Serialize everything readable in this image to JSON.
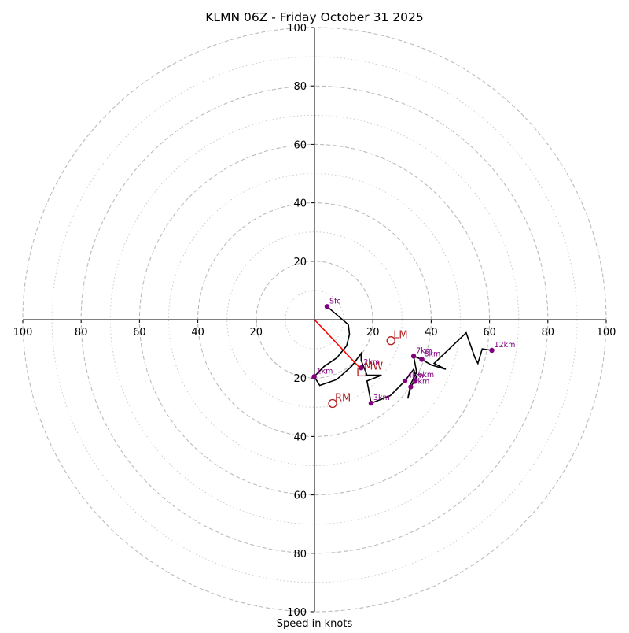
{
  "chart_data": {
    "type": "scatter",
    "title": "KLMN 06Z - Friday October 31 2025",
    "xlabel": "Speed in knots",
    "ylabel": "",
    "xlim": [
      -100,
      100
    ],
    "ylim": [
      -100,
      100
    ],
    "x_ticks": [
      {
        "value": -100,
        "label": "100"
      },
      {
        "value": -80,
        "label": "80"
      },
      {
        "value": -60,
        "label": "60"
      },
      {
        "value": -40,
        "label": "40"
      },
      {
        "value": -20,
        "label": "20"
      },
      {
        "value": 20,
        "label": "20"
      },
      {
        "value": 40,
        "label": "40"
      },
      {
        "value": 60,
        "label": "60"
      },
      {
        "value": 80,
        "label": "80"
      },
      {
        "value": 100,
        "label": "100"
      }
    ],
    "y_ticks": [
      {
        "value": 100,
        "label": "100"
      },
      {
        "value": 80,
        "label": "80"
      },
      {
        "value": 60,
        "label": "60"
      },
      {
        "value": 40,
        "label": "40"
      },
      {
        "value": 20,
        "label": "20"
      },
      {
        "value": -20,
        "label": "20"
      },
      {
        "value": -40,
        "label": "40"
      },
      {
        "value": -60,
        "label": "60"
      },
      {
        "value": -80,
        "label": "80"
      },
      {
        "value": -100,
        "label": "100"
      }
    ],
    "rings_major": [
      20,
      40,
      60,
      80,
      100
    ],
    "rings_minor": [
      10,
      30,
      50,
      70,
      90
    ],
    "colors": {
      "hodograph": "#000000",
      "height_marker": "#800080",
      "motion": "#b22222",
      "shear_vector": "#ff0000",
      "ring": "#bbbbbb",
      "axis": "#000000"
    },
    "hodograph": [
      [
        4.3,
        4.5
      ],
      [
        11.6,
        -1.7
      ],
      [
        12.0,
        -5.0
      ],
      [
        11.0,
        -9.0
      ],
      [
        7.6,
        -13.1
      ],
      [
        3.3,
        -16.0
      ],
      [
        -0.1,
        -19.5
      ],
      [
        1.8,
        -22.5
      ],
      [
        7.6,
        -20.5
      ],
      [
        12.7,
        -16.0
      ],
      [
        16.0,
        -11.5
      ],
      [
        16.0,
        -14.0
      ],
      [
        18.0,
        -19.0
      ],
      [
        23.0,
        -19.0
      ],
      [
        18.0,
        -21.0
      ],
      [
        19.4,
        -28.6
      ],
      [
        26.0,
        -26.0
      ],
      [
        31.0,
        -21.0
      ],
      [
        34.0,
        -17.0
      ],
      [
        35.0,
        -20.0
      ],
      [
        33.0,
        -23.0
      ],
      [
        32.0,
        -27.0
      ],
      [
        33.0,
        -22.0
      ],
      [
        35.0,
        -18.0
      ],
      [
        34.0,
        -12.5
      ],
      [
        36.8,
        -13.6
      ],
      [
        40.0,
        -15.5
      ],
      [
        45.0,
        -17.0
      ],
      [
        41.0,
        -15.0
      ],
      [
        52.0,
        -4.5
      ],
      [
        55.0,
        -13.0
      ],
      [
        56.0,
        -15.0
      ],
      [
        57.5,
        -10.0
      ],
      [
        60.8,
        -10.5
      ]
    ],
    "height_labels": [
      {
        "label": "Sfc",
        "u": 4.3,
        "v": 4.5
      },
      {
        "label": "1km",
        "u": -0.1,
        "v": -19.5
      },
      {
        "label": "2km",
        "u": 16.0,
        "v": -16.5
      },
      {
        "label": "3km",
        "u": 19.4,
        "v": -28.6
      },
      {
        "label": "4km",
        "u": 31.0,
        "v": -21.0
      },
      {
        "label": "5km",
        "u": 33.0,
        "v": -23.0
      },
      {
        "label": "6km",
        "u": 34.6,
        "v": -20.8
      },
      {
        "label": "7km",
        "u": 34.0,
        "v": -12.5
      },
      {
        "label": "8km",
        "u": 36.8,
        "v": -13.6
      },
      {
        "label": "12km",
        "u": 60.8,
        "v": -10.5
      }
    ],
    "storm_motion": [
      {
        "label": "LM",
        "u": 26.2,
        "v": -7.2,
        "marker": "circle"
      },
      {
        "label": "RM",
        "u": 6.2,
        "v": -28.7,
        "marker": "circle"
      },
      {
        "label": "MW",
        "u": 16.2,
        "v": -17.9,
        "marker": "square"
      }
    ],
    "shear_vector": {
      "from": [
        0,
        0
      ],
      "to": [
        16.0,
        -17.0
      ]
    }
  }
}
